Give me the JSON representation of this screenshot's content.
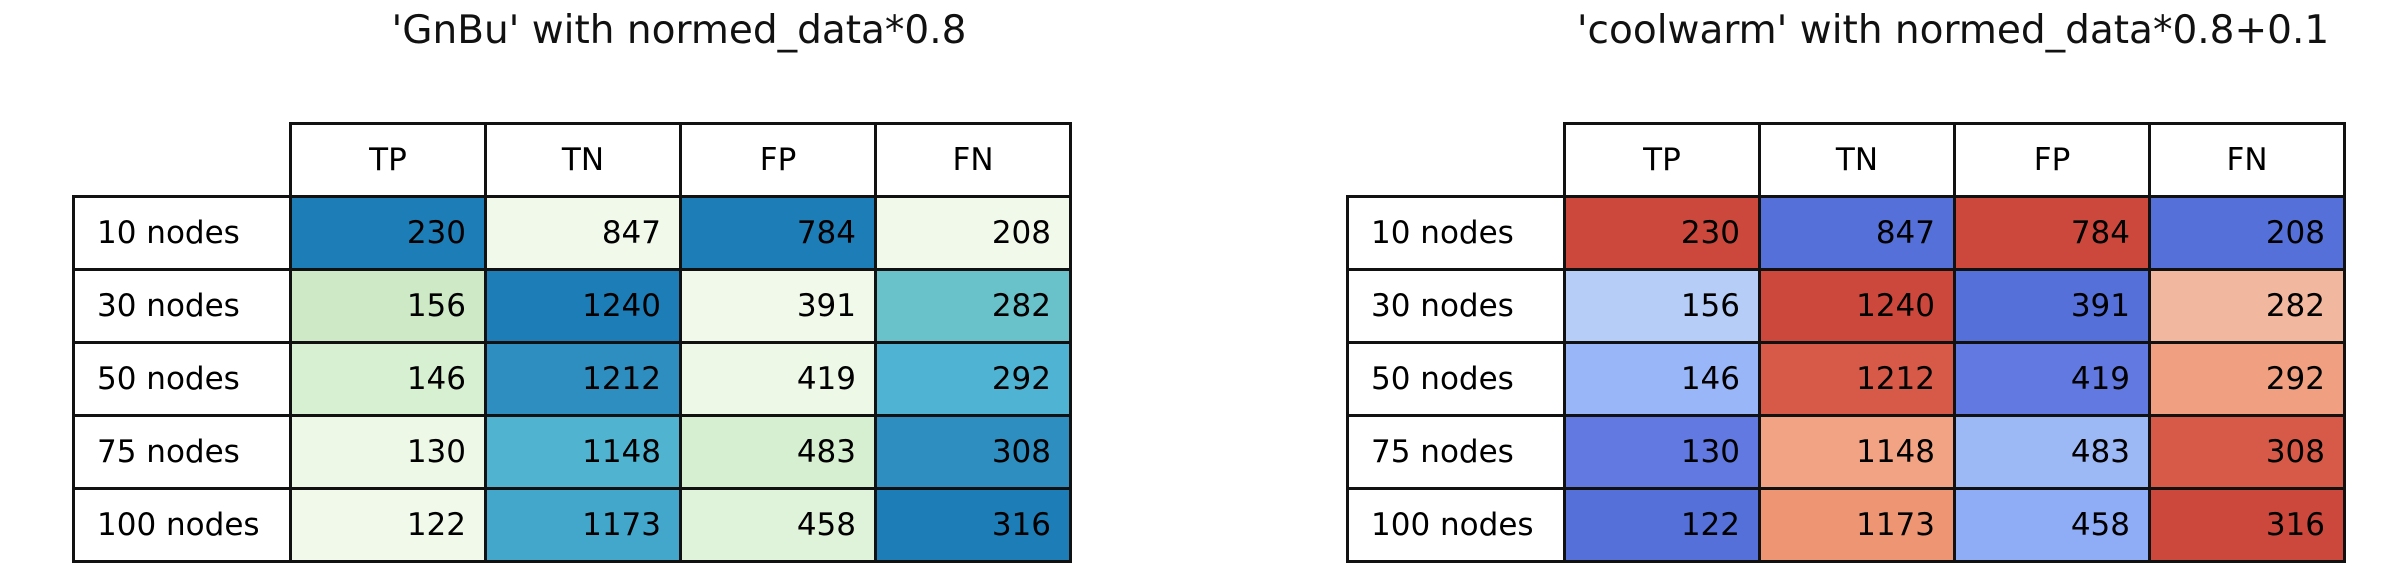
{
  "titles": {
    "left": "'GnBu' with normed_data*0.8",
    "right": "'coolwarm' with normed_data*0.8+0.1"
  },
  "columns": [
    "TP",
    "TN",
    "FP",
    "FN"
  ],
  "rows": [
    "10 nodes",
    "30 nodes",
    "50 nodes",
    "75 nodes",
    "100 nodes"
  ],
  "values": [
    [
      230,
      847,
      784,
      208
    ],
    [
      156,
      1240,
      391,
      282
    ],
    [
      146,
      1212,
      419,
      292
    ],
    [
      130,
      1148,
      483,
      308
    ],
    [
      122,
      1173,
      458,
      316
    ]
  ],
  "chart_data": [
    {
      "type": "heatmap",
      "title": "'GnBu' with normed_data*0.8",
      "columns": [
        "TP",
        "TN",
        "FP",
        "FN"
      ],
      "rows": [
        "10 nodes",
        "30 nodes",
        "50 nodes",
        "75 nodes",
        "100 nodes"
      ],
      "values": [
        [
          230,
          847,
          784,
          208
        ],
        [
          156,
          1240,
          391,
          282
        ],
        [
          146,
          1212,
          419,
          292
        ],
        [
          130,
          1148,
          483,
          308
        ],
        [
          122,
          1173,
          458,
          316
        ]
      ],
      "colormap": "GnBu",
      "normalization": "per-column min-max, scaled by 0.8",
      "legend": "none"
    },
    {
      "type": "heatmap",
      "title": "'coolwarm' with normed_data*0.8+0.1",
      "columns": [
        "TP",
        "TN",
        "FP",
        "FN"
      ],
      "rows": [
        "10 nodes",
        "30 nodes",
        "50 nodes",
        "75 nodes",
        "100 nodes"
      ],
      "values": [
        [
          230,
          847,
          784,
          208
        ],
        [
          156,
          1240,
          391,
          282
        ],
        [
          146,
          1212,
          419,
          292
        ],
        [
          130,
          1148,
          483,
          308
        ],
        [
          122,
          1173,
          458,
          316
        ]
      ],
      "colormap": "coolwarm",
      "normalization": "per-column min-max, scaled by 0.8 plus 0.1",
      "legend": "none"
    }
  ],
  "left_table": {
    "colormap": "GnBu",
    "cell_colors": [
      [
        "#1D7EB7",
        "#F1F9EB",
        "#1D7EB7",
        "#F1F9EB"
      ],
      [
        "#CDE9C6",
        "#1D7EB7",
        "#F1F9EB",
        "#69C1C9"
      ],
      [
        "#D8F0D2",
        "#2D8EBF",
        "#EDF8E7",
        "#4FB4D3"
      ],
      [
        "#EDF8E7",
        "#50B4D1",
        "#D7EFD1",
        "#2D8EBF"
      ],
      [
        "#F1F9EB",
        "#43A7CC",
        "#DFF2DA",
        "#1D7EB7"
      ]
    ]
  },
  "right_table": {
    "colormap": "coolwarm",
    "cell_colors": [
      [
        "#CC483D",
        "#5570D8",
        "#CC483D",
        "#5570D8"
      ],
      [
        "#B5CDF7",
        "#CC483D",
        "#5570D8",
        "#F2B89F"
      ],
      [
        "#98B6F8",
        "#D75A48",
        "#6179E0",
        "#F0A080"
      ],
      [
        "#6179E0",
        "#F1A384",
        "#9CB9F6",
        "#D75A48"
      ],
      [
        "#5570D8",
        "#EE9574",
        "#8FADF7",
        "#CC483D"
      ]
    ]
  },
  "style": {
    "border_color": "#111111",
    "background": "#ffffff",
    "text_color": "#000000"
  }
}
